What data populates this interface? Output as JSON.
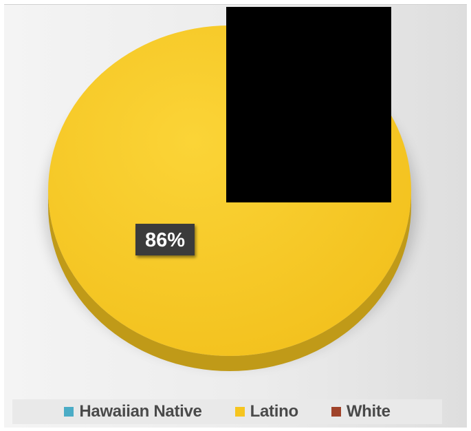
{
  "chart_data": {
    "type": "pie",
    "labels": [
      "Hawaiian Native",
      "Latino",
      "White"
    ],
    "values": [
      null,
      86,
      null
    ],
    "data_labels": [
      "",
      "86%",
      ""
    ],
    "colors": [
      "#4bacc6",
      "#f6c51f",
      "#a0432a"
    ],
    "legend_position": "bottom",
    "style": "3d"
  }
}
